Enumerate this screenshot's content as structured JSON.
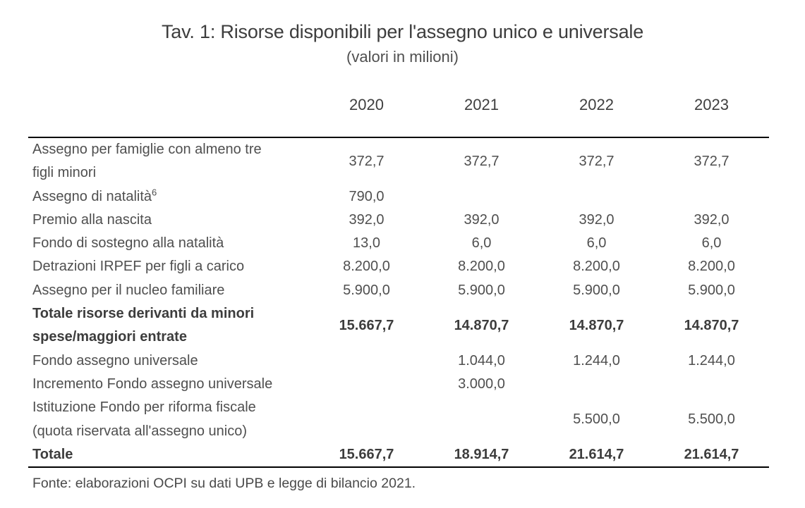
{
  "title": "Tav. 1: Risorse disponibili per l'assegno unico e universale",
  "subtitle": "(valori in milioni)",
  "table": {
    "columns": [
      "2020",
      "2021",
      "2022",
      "2023"
    ],
    "rows": [
      {
        "label": "Assegno per famiglie con almeno tre\nfigli minori",
        "values": [
          "372,7",
          "372,7",
          "372,7",
          "372,7"
        ],
        "bold": false
      },
      {
        "label": "Assegno di natalità",
        "sup": "6",
        "values": [
          "790,0",
          "",
          "",
          ""
        ],
        "bold": false
      },
      {
        "label": "Premio alla nascita",
        "values": [
          "392,0",
          "392,0",
          "392,0",
          "392,0"
        ],
        "bold": false
      },
      {
        "label": "Fondo di sostegno alla natalità",
        "values": [
          "13,0",
          "6,0",
          "6,0",
          "6,0"
        ],
        "bold": false
      },
      {
        "label": "Detrazioni IRPEF per figli a carico",
        "values": [
          "8.200,0",
          "8.200,0",
          "8.200,0",
          "8.200,0"
        ],
        "bold": false
      },
      {
        "label": "Assegno per il nucleo familiare",
        "values": [
          "5.900,0",
          "5.900,0",
          "5.900,0",
          "5.900,0"
        ],
        "bold": false
      },
      {
        "label": "Totale risorse derivanti da minori\nspese/maggiori entrate",
        "values": [
          "15.667,7",
          "14.870,7",
          "14.870,7",
          "14.870,7"
        ],
        "bold": true
      },
      {
        "label": "Fondo assegno universale",
        "values": [
          "",
          "1.044,0",
          "1.244,0",
          "1.244,0"
        ],
        "bold": false
      },
      {
        "label": "Incremento Fondo assegno universale",
        "values": [
          "",
          "3.000,0",
          "",
          ""
        ],
        "bold": false
      },
      {
        "label": "Istituzione Fondo per riforma fiscale\n(quota riservata all'assegno unico)",
        "values": [
          "",
          "",
          "5.500,0",
          "5.500,0"
        ],
        "bold": false
      },
      {
        "label": "Totale",
        "values": [
          "15.667,7",
          "18.914,7",
          "21.614,7",
          "21.614,7"
        ],
        "bold": true
      }
    ]
  },
  "footer": "Fonte: elaborazioni OCPI su dati UPB e legge di bilancio 2021.",
  "colors": {
    "text": "#4f4f4f",
    "bold_text": "#3d3d3d",
    "title_text": "#3d3d3d",
    "rule": "#000000",
    "background": "#ffffff"
  }
}
